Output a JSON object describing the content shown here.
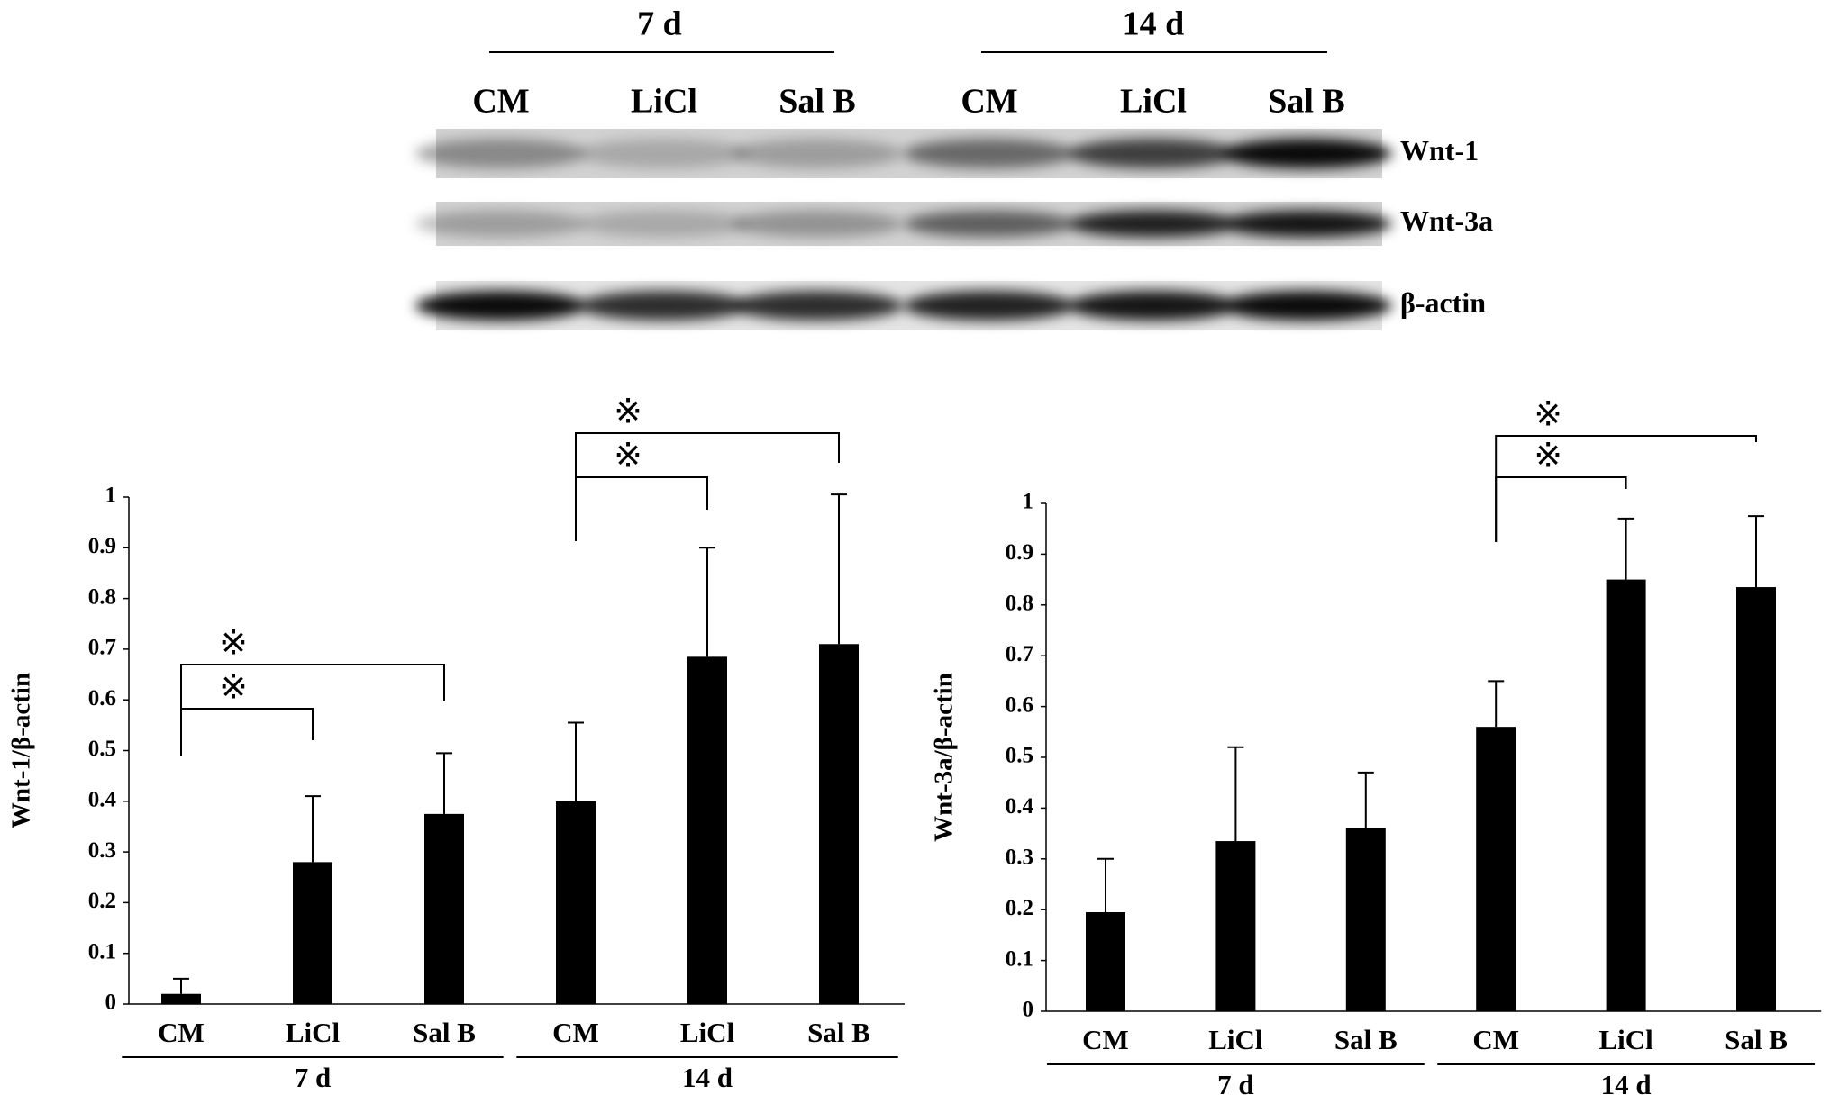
{
  "blot": {
    "groups": [
      "7 d",
      "14 d"
    ],
    "lanes": [
      "CM",
      "LiCl",
      "Sal B",
      "CM",
      "LiCl",
      "Sal B"
    ],
    "rows": [
      "Wnt-1",
      "Wnt-3a",
      "β-actin"
    ]
  },
  "chart_data": [
    {
      "type": "bar",
      "y_label": "Wnt-1/β-actin",
      "categories": [
        "CM",
        "LiCl",
        "Sal B",
        "CM",
        "LiCl",
        "Sal B"
      ],
      "groups": [
        {
          "label": "7 d",
          "size": 3
        },
        {
          "label": "14 d",
          "size": 3
        }
      ],
      "series": [
        {
          "color": "#000000",
          "values": [
            0.02,
            0.28,
            0.375,
            0.4,
            0.685,
            0.71
          ],
          "errors": [
            0.03,
            0.13,
            0.12,
            0.155,
            0.215,
            0.295
          ]
        }
      ],
      "ylim": [
        0,
        1
      ],
      "yticks": [
        0,
        0.1,
        0.2,
        0.3,
        0.4,
        0.5,
        0.6,
        0.7,
        0.8,
        0.9,
        1
      ],
      "significance": [
        {
          "from": 0,
          "to": 1,
          "label": "※"
        },
        {
          "from": 0,
          "to": 2,
          "label": "※"
        },
        {
          "from": 3,
          "to": 4,
          "label": "※"
        },
        {
          "from": 3,
          "to": 5,
          "label": "※"
        }
      ]
    },
    {
      "type": "bar",
      "y_label": "Wnt-3a/β-actin",
      "categories": [
        "CM",
        "LiCl",
        "Sal B",
        "CM",
        "LiCl",
        "Sal B"
      ],
      "groups": [
        {
          "label": "7 d",
          "size": 3
        },
        {
          "label": "14 d",
          "size": 3
        }
      ],
      "series": [
        {
          "color": "#000000",
          "values": [
            0.195,
            0.335,
            0.36,
            0.56,
            0.85,
            0.835
          ],
          "errors": [
            0.105,
            0.185,
            0.11,
            0.09,
            0.12,
            0.14
          ]
        }
      ],
      "ylim": [
        0,
        1
      ],
      "yticks": [
        0,
        0.1,
        0.2,
        0.3,
        0.4,
        0.5,
        0.6,
        0.7,
        0.8,
        0.9,
        1
      ],
      "significance": [
        {
          "from": 3,
          "to": 4,
          "label": "※"
        },
        {
          "from": 3,
          "to": 5,
          "label": "※"
        }
      ]
    }
  ]
}
